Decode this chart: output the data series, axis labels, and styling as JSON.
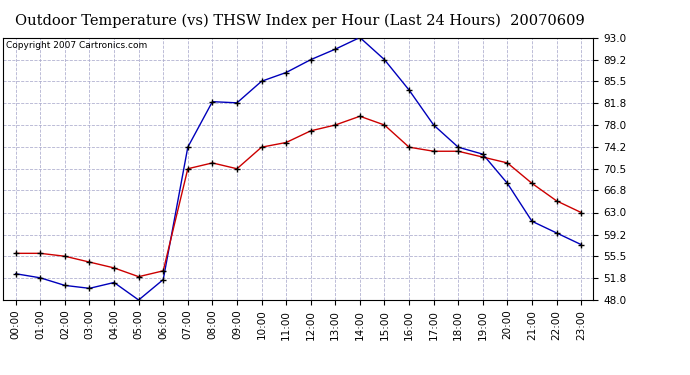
{
  "title": "Outdoor Temperature (vs) THSW Index per Hour (Last 24 Hours)  20070609",
  "copyright": "Copyright 2007 Cartronics.com",
  "hours": [
    "00:00",
    "01:00",
    "02:00",
    "03:00",
    "04:00",
    "05:00",
    "06:00",
    "07:00",
    "08:00",
    "09:00",
    "10:00",
    "11:00",
    "12:00",
    "13:00",
    "14:00",
    "15:00",
    "16:00",
    "17:00",
    "18:00",
    "19:00",
    "20:00",
    "21:00",
    "22:00",
    "23:00"
  ],
  "temp_blue": [
    52.5,
    51.8,
    50.5,
    50.0,
    51.0,
    48.0,
    51.5,
    74.2,
    82.0,
    81.8,
    85.5,
    87.0,
    89.2,
    91.0,
    93.0,
    89.2,
    84.0,
    78.0,
    74.2,
    73.0,
    68.0,
    61.5,
    59.5,
    57.5
  ],
  "temp_red": [
    56.0,
    56.0,
    55.5,
    54.5,
    53.5,
    52.0,
    53.0,
    70.5,
    71.5,
    70.5,
    74.2,
    75.0,
    77.0,
    78.0,
    79.5,
    78.0,
    74.2,
    73.5,
    73.5,
    72.5,
    71.5,
    68.0,
    65.0,
    63.0
  ],
  "ylim": [
    48.0,
    93.0
  ],
  "yticks": [
    48.0,
    51.8,
    55.5,
    59.2,
    63.0,
    66.8,
    70.5,
    74.2,
    78.0,
    81.8,
    85.5,
    89.2,
    93.0
  ],
  "blue_color": "#0000bb",
  "red_color": "#cc0000",
  "bg_color": "#ffffff",
  "grid_color": "#aaaacc",
  "title_fontsize": 10.5,
  "copyright_fontsize": 6.5,
  "tick_fontsize": 7.5
}
